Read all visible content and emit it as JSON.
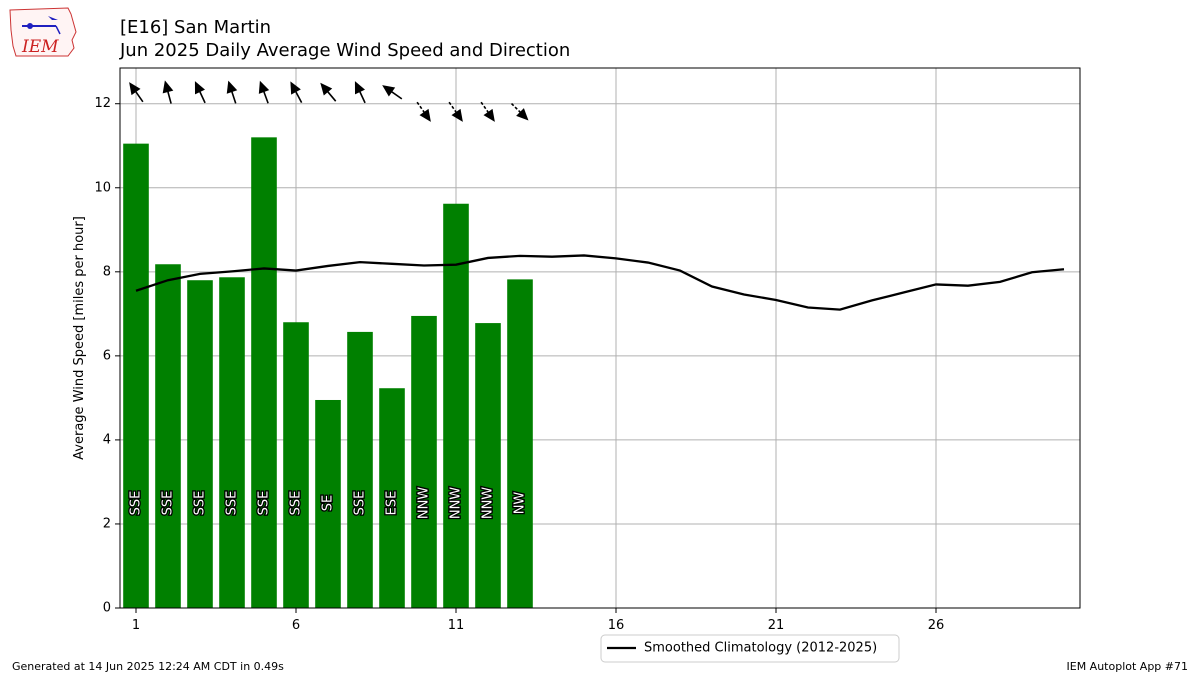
{
  "title_line1": "[E16] San Martin",
  "title_line2": "Jun 2025 Daily Average Wind Speed and Direction",
  "footer_left": "Generated at 14 Jun 2025 12:24 AM CDT in 0.49s",
  "footer_right": "IEM Autoplot App #71",
  "logo_text": "IEM",
  "colors": {
    "bar": "#008000",
    "line": "#000000",
    "grid": "#b0b0b0"
  },
  "chart_data": {
    "type": "bar",
    "ylabel": "Average Wind Speed [miles per hour]",
    "xlabel": "",
    "xlim": [
      0.5,
      30.5
    ],
    "ylim": [
      0,
      12.85
    ],
    "xticks": [
      1,
      6,
      11,
      16,
      21,
      26
    ],
    "yticks": [
      0,
      2,
      4,
      6,
      8,
      10,
      12
    ],
    "grid": true,
    "legend_position": "bottom-center",
    "bars": {
      "days": [
        1,
        2,
        3,
        4,
        5,
        6,
        7,
        8,
        9,
        10,
        11,
        12,
        13
      ],
      "values": [
        11.05,
        8.18,
        7.8,
        7.87,
        11.2,
        6.8,
        4.95,
        6.57,
        5.23,
        6.95,
        9.62,
        6.78,
        7.82
      ],
      "direction_labels": [
        "SSE",
        "SSE",
        "SSE",
        "SSE",
        "SSE",
        "SSE",
        "SE",
        "SSE",
        "ESE",
        "NNW",
        "NNW",
        "NNW",
        "NW"
      ],
      "arrow_angles_deg": [
        -35,
        -15,
        -25,
        -18,
        -20,
        -28,
        -40,
        -25,
        -55,
        145,
        145,
        145,
        135
      ]
    },
    "series": [
      {
        "name": "Smoothed Climatology (2012-2025)",
        "x": [
          1,
          2,
          3,
          4,
          5,
          6,
          7,
          8,
          9,
          10,
          11,
          12,
          13,
          14,
          15,
          16,
          17,
          18,
          19,
          20,
          21,
          22,
          23,
          24,
          25,
          26,
          27,
          28,
          29,
          30
        ],
        "y": [
          7.55,
          7.8,
          7.95,
          8.01,
          8.08,
          8.03,
          8.14,
          8.23,
          8.19,
          8.15,
          8.17,
          8.33,
          8.38,
          8.36,
          8.39,
          8.32,
          8.22,
          8.03,
          7.65,
          7.46,
          7.33,
          7.15,
          7.1,
          7.32,
          7.51,
          7.7,
          7.67,
          7.76,
          7.99,
          8.06
        ]
      }
    ]
  }
}
